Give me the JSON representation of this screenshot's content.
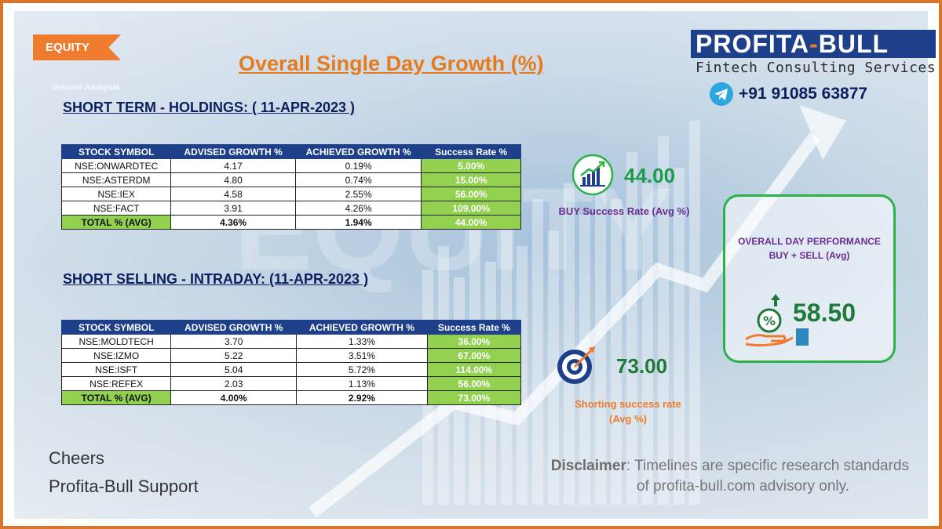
{
  "tag": "EQUITY",
  "title": "Overall Single Day Growth (%)",
  "brand": {
    "name_left": "PROFITA",
    "name_dash": "-",
    "name_right": "BULL",
    "subtitle": "Fintech Consulting Services",
    "phone": "+91 91085 63877"
  },
  "background_text": "Volume Analysis",
  "holdings": {
    "title": "SHORT TERM - HOLDINGS: ( 11-APR-2023 )",
    "headers": [
      "STOCK SYMBOL",
      "ADVISED GROWTH %",
      "ACHIEVED GROWTH %",
      "Success  Rate %"
    ],
    "rows": [
      {
        "symbol": "NSE:ONWARDTEC",
        "advised": "4.17",
        "achieved": "0.19%",
        "rate": "5.00%"
      },
      {
        "symbol": "NSE:ASTERDM",
        "advised": "4.80",
        "achieved": "0.74%",
        "rate": "15.00%"
      },
      {
        "symbol": "NSE:IEX",
        "advised": "4.58",
        "achieved": "2.55%",
        "rate": "56.00%"
      },
      {
        "symbol": "NSE:FACT",
        "advised": "3.91",
        "achieved": "4.26%",
        "rate": "109.00%"
      }
    ],
    "total": {
      "symbol": "TOTAL % (AVG)",
      "advised": "4.36%",
      "achieved": "1.94%",
      "rate": "44.00%"
    }
  },
  "intraday": {
    "title": "SHORT SELLING - INTRADAY: (11-APR-2023 )",
    "headers": [
      "STOCK SYMBOL",
      "ADVISED GROWTH %",
      "ACHIEVED GROWTH %",
      "Success  Rate %"
    ],
    "rows": [
      {
        "symbol": "NSE:MOLDTECH",
        "advised": "3.70",
        "achieved": "1.33%",
        "rate": "36.00%"
      },
      {
        "symbol": "NSE:IZMO",
        "advised": "5.22",
        "achieved": "3.51%",
        "rate": "67.00%"
      },
      {
        "symbol": "NSE:ISFT",
        "advised": "5.04",
        "achieved": "5.72%",
        "rate": "114.00%"
      },
      {
        "symbol": "NSE:REFEX",
        "advised": "2.03",
        "achieved": "1.13%",
        "rate": "56.00%"
      }
    ],
    "total": {
      "symbol": "TOTAL % (AVG)",
      "advised": "4.00%",
      "achieved": "2.92%",
      "rate": "73.00%"
    }
  },
  "buy_metric": {
    "value": "44.00",
    "label": "BUY Success Rate (Avg %)",
    "icon": "growth-chart-icon"
  },
  "short_metric": {
    "value": "73.00",
    "label_line1": "Shorting success rate",
    "label_line2": "(Avg %)",
    "icon": "target-icon"
  },
  "overall": {
    "title_line1": "OVERALL DAY PERFORMANCE",
    "title_line2": "BUY + SELL (Avg)",
    "value": "58.50",
    "icon": "percent-hand-icon"
  },
  "footer": {
    "line1": "Cheers",
    "line2": "Profita-Bull Support"
  },
  "disclaimer": {
    "label": "Disclaimer",
    "line1": ": Timelines are specific research standards",
    "line2": "of profita-bull.com advisory only."
  },
  "colors": {
    "accent_orange": "#ee7b2e",
    "navy": "#1e3f8a",
    "green": "#92d050",
    "metric_green": "#1e9b4a",
    "purple": "#6a2c91"
  }
}
